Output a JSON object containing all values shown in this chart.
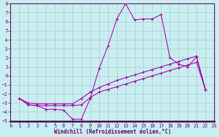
{
  "xlabel": "Windchill (Refroidissement éolien,°C)",
  "background_color": "#c8eef0",
  "grid_color": "#aacccc",
  "line_color": "#aa00aa",
  "xlim": [
    0,
    23
  ],
  "ylim": [
    -5,
    8
  ],
  "xticks": [
    0,
    1,
    2,
    3,
    4,
    5,
    6,
    7,
    8,
    9,
    10,
    11,
    12,
    13,
    14,
    15,
    16,
    17,
    18,
    19,
    20,
    21,
    22,
    23
  ],
  "yticks": [
    -5,
    -4,
    -3,
    -2,
    -1,
    0,
    1,
    2,
    3,
    4,
    5,
    6,
    7,
    8
  ],
  "series0_x": [
    1,
    2,
    3,
    4,
    5,
    6,
    7,
    8,
    9,
    10,
    11,
    12,
    13,
    14,
    15,
    16,
    17,
    18,
    19,
    20,
    21,
    22
  ],
  "series0_y": [
    -2.5,
    -3.2,
    -3.3,
    -3.7,
    -3.7,
    -3.8,
    -4.8,
    -4.8,
    -2.5,
    0.8,
    3.3,
    6.3,
    8.0,
    6.2,
    6.3,
    6.3,
    6.8,
    2.0,
    1.3,
    1.0,
    2.1,
    -1.5
  ],
  "series1_x": [
    1,
    2,
    3,
    4,
    5,
    6,
    7,
    8,
    9,
    10,
    11,
    12,
    13,
    14,
    15,
    16,
    17,
    18,
    19,
    20,
    21,
    22
  ],
  "series1_y": [
    -2.5,
    -3.2,
    -3.3,
    -3.3,
    -3.3,
    -3.3,
    -3.3,
    -3.2,
    -2.4,
    -1.8,
    -1.5,
    -1.2,
    -0.9,
    -0.6,
    -0.3,
    0.0,
    0.3,
    0.6,
    0.9,
    1.2,
    1.5,
    -1.5
  ],
  "series2_x": [
    1,
    2,
    3,
    4,
    5,
    6,
    7,
    8,
    9,
    10,
    11,
    12,
    13,
    14,
    15,
    16,
    17,
    18,
    19,
    20,
    21,
    22
  ],
  "series2_y": [
    -2.5,
    -3.0,
    -3.1,
    -3.1,
    -3.1,
    -3.1,
    -3.1,
    -2.5,
    -1.8,
    -1.3,
    -0.9,
    -0.5,
    -0.2,
    0.1,
    0.4,
    0.7,
    1.0,
    1.3,
    1.6,
    1.9,
    2.2,
    -1.5
  ],
  "tick_color": "#660066",
  "tick_fontsize": 5,
  "xlabel_fontsize": 5.5
}
